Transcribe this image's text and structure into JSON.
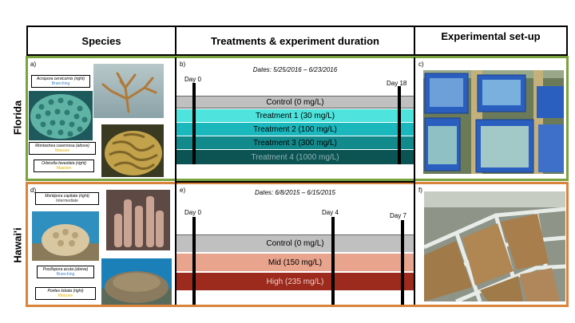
{
  "headers": {
    "species": "Species",
    "treatments": "Treatments & experiment duration",
    "setup": "Experimental set-up"
  },
  "rows": {
    "florida": "Florida",
    "hawaii": "Hawai'i"
  },
  "colors": {
    "florida_border": "#7aa33e",
    "hawaii_border": "#d9843b",
    "morph_branching": "#3f82c4",
    "morph_massive": "#e0b000",
    "morph_intermediate": "#333333"
  },
  "florida": {
    "letters": {
      "species": "a)",
      "treatments": "b)",
      "setup": "c)"
    },
    "dates": "Dates: 5/25/2016 – 6/23/2016",
    "days": [
      "Day 0",
      "Day 18"
    ],
    "species": [
      {
        "name": "Acropora cervicornis (right)",
        "morph": "Branching",
        "morph_color": "#3f82c4"
      },
      {
        "name": "Montastrea cavernosa (above)",
        "morph": "Massive",
        "morph_color": "#e0b000"
      },
      {
        "name": "Orbicella faveolata (right)",
        "morph": "Massive",
        "morph_color": "#e0b000"
      }
    ],
    "treatments": [
      {
        "label": "Control (0 mg/L)",
        "color": "#c0c0c0"
      },
      {
        "label": "Treatment 1 (30 mg/L)",
        "color": "#4ee3dc"
      },
      {
        "label": "Treatment 2 (100 mg/L)",
        "color": "#1ab8bd"
      },
      {
        "label": "Treatment 3 (300 mg/L)",
        "color": "#128a8c"
      },
      {
        "label": "Treatment 4 (1000 mg/L)",
        "color": "#0c5454"
      }
    ]
  },
  "hawaii": {
    "letters": {
      "species": "d)",
      "treatments": "e)",
      "setup": "f)"
    },
    "dates": "Dates: 6/8/2015 – 6/15/2015",
    "days": [
      "Day 0",
      "Day 4",
      "Day 7"
    ],
    "species": [
      {
        "name": "Montipora capitata (right)",
        "morph": "Intermediate",
        "morph_color": "#333333"
      },
      {
        "name": "Pocillopora acuta (above)",
        "morph": "Branching",
        "morph_color": "#3f82c4"
      },
      {
        "name": "Porites lobata (right)",
        "morph": "Massive",
        "morph_color": "#e0b000"
      }
    ],
    "treatments": [
      {
        "label": "Control (0 mg/L)",
        "color": "#c0c0c0"
      },
      {
        "label": "Mid (150 mg/L)",
        "color": "#e8a48d"
      },
      {
        "label": "High (235 mg/L)",
        "color": "#9c2a1d"
      }
    ]
  }
}
